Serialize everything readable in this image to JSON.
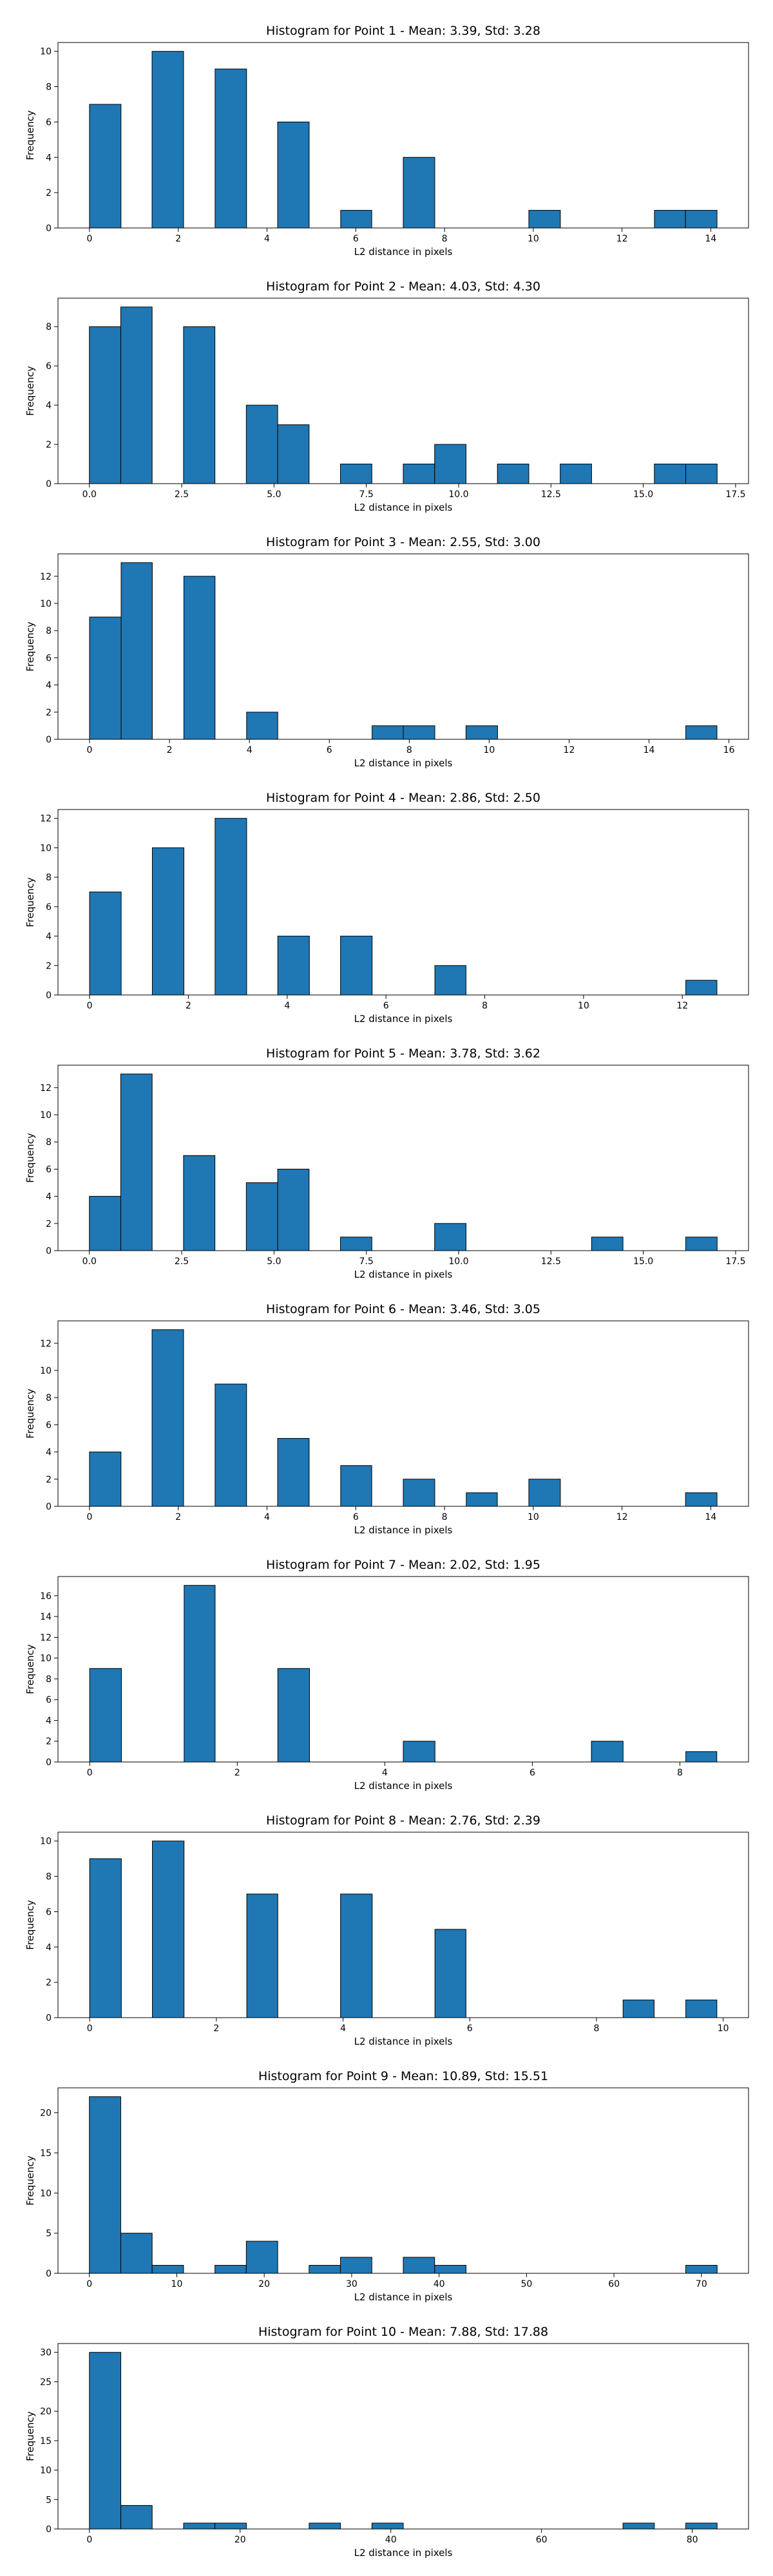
{
  "chart_data": [
    {
      "type": "histogram",
      "title": "Histogram for Point 1 - Mean: 3.39, Std: 3.28",
      "x_label": "L2 distance in pixels",
      "y_label": "Frequency",
      "color": "#1f77b4",
      "bins": [
        0,
        0.71,
        1.41,
        2.12,
        2.83,
        3.54,
        4.24,
        4.95,
        5.66,
        6.36,
        7.07,
        7.78,
        8.49,
        9.19,
        9.9,
        10.61,
        11.31,
        12.02,
        12.73,
        13.43,
        14.14
      ],
      "values": [
        7,
        0,
        10,
        0,
        9,
        0,
        6,
        0,
        1,
        0,
        4,
        0,
        0,
        0,
        1,
        0,
        0,
        0,
        1,
        1
      ],
      "xlim": [
        -0.71,
        14.85
      ],
      "xticks": [
        0,
        2,
        4,
        6,
        8,
        10,
        12,
        14
      ],
      "ylim": [
        0,
        10.5
      ],
      "yticks": [
        0,
        2,
        4,
        6,
        8,
        10
      ]
    },
    {
      "type": "histogram",
      "title": "Histogram for Point 2 - Mean: 4.03, Std: 4.30",
      "x_label": "L2 distance in pixels",
      "y_label": "Frequency",
      "color": "#1f77b4",
      "bins": [
        0,
        0.85,
        1.7,
        2.55,
        3.4,
        4.25,
        5.1,
        5.95,
        6.8,
        7.65,
        8.5,
        9.35,
        10.2,
        11.05,
        11.9,
        12.75,
        13.6,
        14.45,
        15.3,
        16.15,
        17
      ],
      "values": [
        8,
        9,
        0,
        8,
        0,
        4,
        3,
        0,
        1,
        0,
        1,
        2,
        0,
        1,
        0,
        1,
        0,
        0,
        1,
        1
      ],
      "xlim": [
        -0.85,
        17.85
      ],
      "xticks": [
        {
          "value": 0,
          "label": "0.0"
        },
        2.5,
        {
          "value": 5,
          "label": "5.0"
        },
        7.5,
        {
          "value": 10,
          "label": "10.0"
        },
        12.5,
        {
          "value": 15,
          "label": "15.0"
        },
        17.5
      ],
      "ylim": [
        0,
        9.45
      ],
      "yticks": [
        0,
        2,
        4,
        6,
        8
      ]
    },
    {
      "type": "histogram",
      "title": "Histogram for Point 3 - Mean: 2.55, Std: 3.00",
      "x_label": "L2 distance in pixels",
      "y_label": "Frequency",
      "color": "#1f77b4",
      "bins": [
        0,
        0.79,
        1.57,
        2.36,
        3.14,
        3.93,
        4.71,
        5.5,
        6.28,
        7.07,
        7.85,
        8.64,
        9.42,
        10.21,
        10.99,
        11.78,
        12.56,
        13.35,
        14.13,
        14.92,
        15.7
      ],
      "values": [
        9,
        13,
        0,
        12,
        0,
        2,
        0,
        0,
        0,
        1,
        1,
        0,
        1,
        0,
        0,
        0,
        0,
        0,
        0,
        1
      ],
      "xlim": [
        -0.79,
        16.49
      ],
      "xticks": [
        0,
        2,
        4,
        6,
        8,
        10,
        12,
        14,
        16
      ],
      "ylim": [
        0,
        13.65
      ],
      "yticks": [
        0,
        2,
        4,
        6,
        8,
        10,
        12
      ]
    },
    {
      "type": "histogram",
      "title": "Histogram for Point 4 - Mean: 2.86, Std: 2.50",
      "x_label": "L2 distance in pixels",
      "y_label": "Frequency",
      "color": "#1f77b4",
      "bins": [
        0,
        0.64,
        1.27,
        1.91,
        2.54,
        3.18,
        3.81,
        4.45,
        5.08,
        5.72,
        6.35,
        6.99,
        7.62,
        8.26,
        8.89,
        9.53,
        10.16,
        10.8,
        11.43,
        12.07,
        12.7
      ],
      "values": [
        7,
        0,
        10,
        0,
        12,
        0,
        4,
        0,
        4,
        0,
        0,
        2,
        0,
        0,
        0,
        0,
        0,
        0,
        0,
        1
      ],
      "xlim": [
        -0.64,
        13.34
      ],
      "xticks": [
        0,
        2,
        4,
        6,
        8,
        10,
        12
      ],
      "ylim": [
        0,
        12.6
      ],
      "yticks": [
        0,
        2,
        4,
        6,
        8,
        10,
        12
      ]
    },
    {
      "type": "histogram",
      "title": "Histogram for Point 5 - Mean: 3.78, Std: 3.62",
      "x_label": "L2 distance in pixels",
      "y_label": "Frequency",
      "color": "#1f77b4",
      "bins": [
        0,
        0.85,
        1.7,
        2.55,
        3.4,
        4.25,
        5.1,
        5.95,
        6.8,
        7.65,
        8.5,
        9.35,
        10.2,
        11.05,
        11.9,
        12.75,
        13.6,
        14.45,
        15.3,
        16.15,
        17
      ],
      "values": [
        4,
        13,
        0,
        7,
        0,
        5,
        6,
        0,
        1,
        0,
        0,
        2,
        0,
        0,
        0,
        0,
        1,
        0,
        0,
        1
      ],
      "xlim": [
        -0.85,
        17.85
      ],
      "xticks": [
        {
          "value": 0,
          "label": "0.0"
        },
        2.5,
        {
          "value": 5,
          "label": "5.0"
        },
        7.5,
        {
          "value": 10,
          "label": "10.0"
        },
        12.5,
        {
          "value": 15,
          "label": "15.0"
        },
        17.5
      ],
      "ylim": [
        0,
        13.65
      ],
      "yticks": [
        0,
        2,
        4,
        6,
        8,
        10,
        12
      ]
    },
    {
      "type": "histogram",
      "title": "Histogram for Point 6 - Mean: 3.46, Std: 3.05",
      "x_label": "L2 distance in pixels",
      "y_label": "Frequency",
      "color": "#1f77b4",
      "bins": [
        0,
        0.71,
        1.41,
        2.12,
        2.83,
        3.54,
        4.24,
        4.95,
        5.66,
        6.36,
        7.07,
        7.78,
        8.49,
        9.19,
        9.9,
        10.61,
        11.31,
        12.02,
        12.73,
        13.43,
        14.14
      ],
      "values": [
        4,
        0,
        13,
        0,
        9,
        0,
        5,
        0,
        3,
        0,
        2,
        0,
        1,
        0,
        2,
        0,
        0,
        0,
        0,
        1
      ],
      "xlim": [
        -0.71,
        14.85
      ],
      "xticks": [
        0,
        2,
        4,
        6,
        8,
        10,
        12,
        14
      ],
      "ylim": [
        0,
        13.65
      ],
      "yticks": [
        0,
        2,
        4,
        6,
        8,
        10,
        12
      ]
    },
    {
      "type": "histogram",
      "title": "Histogram for Point 7 - Mean: 2.02, Std: 1.95",
      "x_label": "L2 distance in pixels",
      "y_label": "Frequency",
      "color": "#1f77b4",
      "bins": [
        0,
        0.43,
        0.85,
        1.28,
        1.7,
        2.13,
        2.55,
        2.98,
        3.4,
        3.83,
        4.25,
        4.68,
        5.1,
        5.53,
        5.95,
        6.38,
        6.8,
        7.23,
        7.65,
        8.08,
        8.5
      ],
      "values": [
        9,
        0,
        0,
        17,
        0,
        0,
        9,
        0,
        0,
        0,
        2,
        0,
        0,
        0,
        0,
        0,
        2,
        0,
        0,
        1
      ],
      "xlim": [
        -0.43,
        8.93
      ],
      "xticks": [
        0,
        2,
        4,
        6,
        8
      ],
      "ylim": [
        0,
        17.85
      ],
      "yticks": [
        0,
        2,
        4,
        6,
        8,
        10,
        12,
        14,
        16
      ]
    },
    {
      "type": "histogram",
      "title": "Histogram for Point 8 - Mean: 2.76, Std: 2.39",
      "x_label": "L2 distance in pixels",
      "y_label": "Frequency",
      "color": "#1f77b4",
      "bins": [
        0,
        0.5,
        0.99,
        1.49,
        1.98,
        2.48,
        2.97,
        3.47,
        3.96,
        4.46,
        4.95,
        5.45,
        5.94,
        6.44,
        6.93,
        7.43,
        7.92,
        8.42,
        8.91,
        9.41,
        9.9
      ],
      "values": [
        9,
        0,
        10,
        0,
        0,
        7,
        0,
        0,
        7,
        0,
        0,
        5,
        0,
        0,
        0,
        0,
        0,
        1,
        0,
        1
      ],
      "xlim": [
        -0.5,
        10.4
      ],
      "xticks": [
        0,
        2,
        4,
        6,
        8,
        10
      ],
      "ylim": [
        0,
        10.5
      ],
      "yticks": [
        0,
        2,
        4,
        6,
        8,
        10
      ]
    },
    {
      "type": "histogram",
      "title": "Histogram for Point 9 - Mean: 10.89, Std: 15.51",
      "x_label": "L2 distance in pixels",
      "y_label": "Frequency",
      "color": "#1f77b4",
      "bins": [
        0,
        3.59,
        7.18,
        10.77,
        14.36,
        17.95,
        21.54,
        25.13,
        28.72,
        32.31,
        35.9,
        39.49,
        43.08,
        46.67,
        50.26,
        53.85,
        57.44,
        61.03,
        64.62,
        68.21,
        71.8
      ],
      "values": [
        22,
        5,
        1,
        0,
        1,
        4,
        0,
        1,
        2,
        0,
        2,
        1,
        0,
        0,
        0,
        0,
        0,
        0,
        0,
        1
      ],
      "xlim": [
        -3.59,
        75.39
      ],
      "xticks": [
        0,
        10,
        20,
        30,
        40,
        50,
        60,
        70
      ],
      "ylim": [
        0,
        23.1
      ],
      "yticks": [
        0,
        5,
        10,
        15,
        20
      ]
    },
    {
      "type": "histogram",
      "title": "Histogram for Point 10 - Mean: 7.88, Std: 17.88",
      "x_label": "L2 distance in pixels",
      "y_label": "Frequency",
      "color": "#1f77b4",
      "bins": [
        0,
        4.17,
        8.33,
        12.5,
        16.66,
        20.83,
        24.99,
        29.16,
        33.32,
        37.49,
        41.65,
        45.82,
        49.98,
        54.15,
        58.31,
        62.48,
        66.64,
        70.81,
        74.97,
        79.14,
        83.3
      ],
      "values": [
        30,
        4,
        0,
        1,
        1,
        0,
        0,
        1,
        0,
        1,
        0,
        0,
        0,
        0,
        0,
        0,
        0,
        1,
        0,
        1
      ],
      "xlim": [
        -4.17,
        87.47
      ],
      "xticks": [
        0,
        20,
        40,
        60,
        80
      ],
      "ylim": [
        0,
        31.5
      ],
      "yticks": [
        0,
        5,
        10,
        15,
        20,
        25,
        30
      ]
    }
  ]
}
